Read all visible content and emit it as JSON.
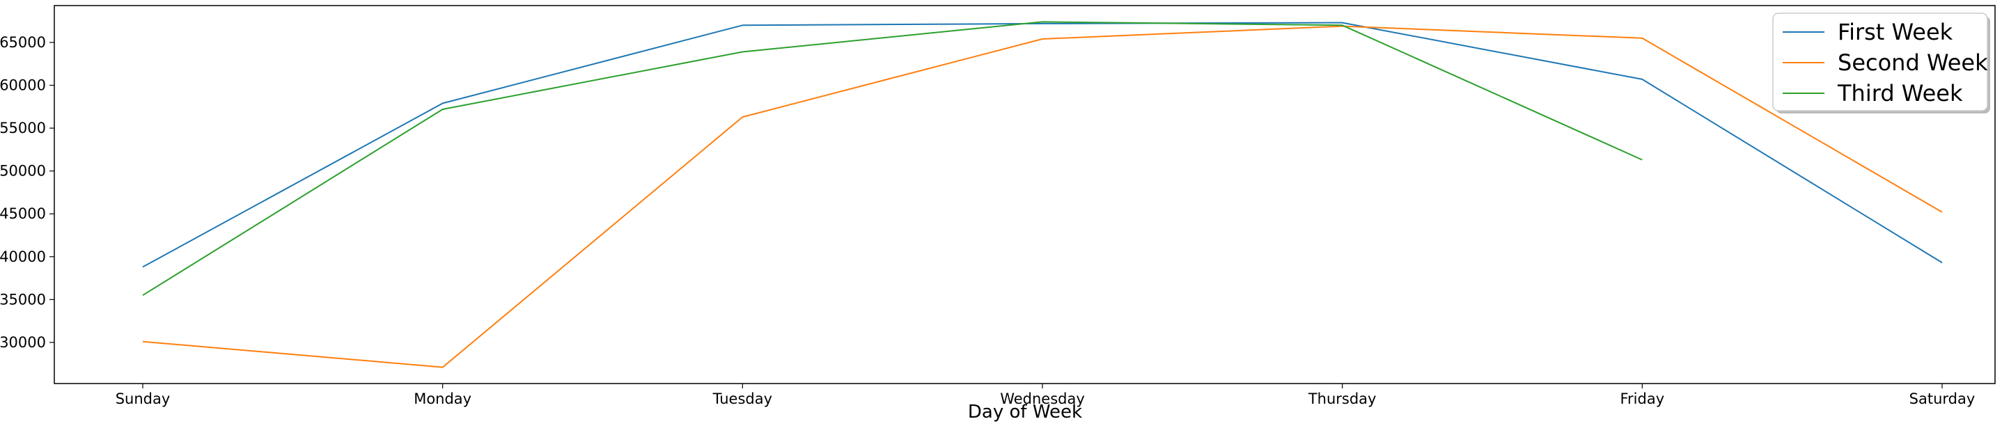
{
  "chart_data": {
    "type": "line",
    "categories": [
      "Sunday",
      "Monday",
      "Tuesday",
      "Wednesday",
      "Thursday",
      "Friday",
      "Saturday"
    ],
    "series": [
      {
        "name": "First Week",
        "color": "#1f77b4",
        "values": [
          38800,
          57900,
          67000,
          67200,
          67300,
          60700,
          39300
        ]
      },
      {
        "name": "Second Week",
        "color": "#ff7f0e",
        "values": [
          30100,
          27100,
          56300,
          65400,
          66900,
          65500,
          45200
        ]
      },
      {
        "name": "Third Week",
        "color": "#2ca02c",
        "values": [
          35500,
          57200,
          63900,
          67400,
          67000,
          51300,
          null
        ]
      }
    ],
    "title": "",
    "xlabel": "Day of Week",
    "ylabel": "",
    "ylim": [
      25200,
      69300
    ],
    "yticks": [
      30000,
      35000,
      40000,
      45000,
      50000,
      55000,
      60000,
      65000
    ],
    "ytick_labels": [
      "30000",
      "35000",
      "40000",
      "45000",
      "50000",
      "55000",
      "60000",
      "65000"
    ],
    "grid": false,
    "legend_position": "upper right"
  }
}
